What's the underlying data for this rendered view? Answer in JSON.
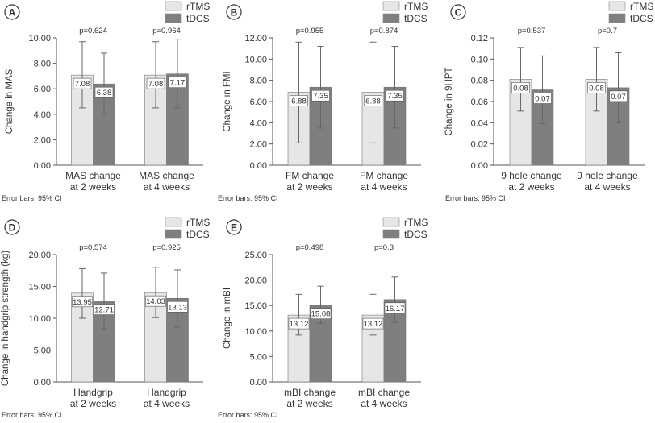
{
  "colors": {
    "rTMS": "#e6e6e6",
    "tDCS": "#7f7f7f",
    "axis": "#555555",
    "errorbar": "#666666"
  },
  "legend": [
    "rTMS",
    "tDCS"
  ],
  "error_note": "Error bars: 95% CI",
  "chart_data": [
    {
      "panel": "A",
      "type": "bar",
      "title": "",
      "xlabel": "",
      "ylabel": "Change in MAS",
      "categories": [
        "MAS change at 2 weeks",
        "MAS change at 4 weeks"
      ],
      "category_lines": [
        [
          "MAS change",
          "at 2 weeks"
        ],
        [
          "MAS change",
          "at 4 weeks"
        ]
      ],
      "yticks": [
        "0.00",
        "2.00",
        "4.00",
        "6.00",
        "8.00",
        "10.00"
      ],
      "ylim": [
        0,
        10
      ],
      "pvalues": [
        "p=0.624",
        "p=0.964"
      ],
      "series": [
        {
          "name": "rTMS",
          "values": [
            7.08,
            7.08
          ],
          "labels": [
            "7.08",
            "7.08"
          ],
          "ci_low": [
            4.5,
            4.5
          ],
          "ci_high": [
            9.7,
            9.7
          ]
        },
        {
          "name": "tDCS",
          "values": [
            6.38,
            7.17
          ],
          "labels": [
            "6.38",
            "7.17"
          ],
          "ci_low": [
            4.0,
            4.5
          ],
          "ci_high": [
            8.8,
            9.9
          ]
        }
      ],
      "legend": "top-right",
      "error_bars": "95% CI",
      "grid": false
    },
    {
      "panel": "B",
      "type": "bar",
      "title": "",
      "xlabel": "",
      "ylabel": "Change in FMI",
      "categories": [
        "FM change at 2 weeks",
        "FM change at 4 weeks"
      ],
      "category_lines": [
        [
          "FM change",
          "at 2 weeks"
        ],
        [
          "FM change",
          "at 4 weeks"
        ]
      ],
      "yticks": [
        "0.00",
        "2.00",
        "4.00",
        "6.00",
        "8.00",
        "10.00",
        "12.00"
      ],
      "ylim": [
        0,
        12
      ],
      "pvalues": [
        "p=0.955",
        "p=0.874"
      ],
      "series": [
        {
          "name": "rTMS",
          "values": [
            6.88,
            6.88
          ],
          "labels": [
            "6.88",
            "6.88"
          ],
          "ci_low": [
            2.1,
            2.1
          ],
          "ci_high": [
            11.6,
            11.6
          ]
        },
        {
          "name": "tDCS",
          "values": [
            7.35,
            7.35
          ],
          "labels": [
            "7.35",
            "7.35"
          ],
          "ci_low": [
            3.5,
            3.5
          ],
          "ci_high": [
            11.2,
            11.2
          ]
        }
      ],
      "legend": "top-right",
      "error_bars": "95% CI",
      "grid": false
    },
    {
      "panel": "C",
      "type": "bar",
      "title": "",
      "xlabel": "",
      "ylabel": "Change in 9HPT",
      "categories": [
        "9 hole change at 2 weeks",
        "9 hole change at 4 weeks"
      ],
      "category_lines": [
        [
          "9 hole change",
          "at 2 weeks"
        ],
        [
          "9 hole change",
          "at 4 weeks"
        ]
      ],
      "yticks": [
        "0.00",
        "0.02",
        "0.04",
        "0.06",
        "0.08",
        "0.10",
        "0.12"
      ],
      "ylim": [
        0,
        0.12
      ],
      "pvalues": [
        "p=0.537",
        "p=0.7"
      ],
      "series": [
        {
          "name": "rTMS",
          "values": [
            0.081,
            0.081
          ],
          "labels": [
            "0.08",
            "0.08"
          ],
          "ci_low": [
            0.051,
            0.051
          ],
          "ci_high": [
            0.111,
            0.111
          ]
        },
        {
          "name": "tDCS",
          "values": [
            0.071,
            0.073
          ],
          "labels": [
            "0.07",
            "0.07"
          ],
          "ci_low": [
            0.039,
            0.04
          ],
          "ci_high": [
            0.103,
            0.106
          ]
        }
      ],
      "legend": "top-right",
      "error_bars": "95% CI",
      "grid": false
    },
    {
      "panel": "D",
      "type": "bar",
      "title": "",
      "xlabel": "",
      "ylabel": "Change in handgrip strength (kg)",
      "categories": [
        "Handgrip at 2 weeks",
        "Handgrip at 4 weeks"
      ],
      "category_lines": [
        [
          "Handgrip",
          "at 2 weeks"
        ],
        [
          "Handgrip",
          "at 4 weeks"
        ]
      ],
      "yticks": [
        "0.00",
        "5.00",
        "10.00",
        "15.00",
        "20.00"
      ],
      "ylim": [
        0,
        20
      ],
      "pvalues": [
        "p=0.574",
        "p=0.925"
      ],
      "series": [
        {
          "name": "rTMS",
          "values": [
            13.95,
            14.03
          ],
          "labels": [
            "13.95",
            "14.03"
          ],
          "ci_low": [
            10.0,
            10.1
          ],
          "ci_high": [
            17.8,
            18.0
          ]
        },
        {
          "name": "tDCS",
          "values": [
            12.71,
            13.13
          ],
          "labels": [
            "12.71",
            "13.13"
          ],
          "ci_low": [
            8.3,
            8.6
          ],
          "ci_high": [
            17.1,
            17.6
          ]
        }
      ],
      "legend": "top-right",
      "error_bars": "95% CI",
      "grid": false
    },
    {
      "panel": "E",
      "type": "bar",
      "title": "",
      "xlabel": "",
      "ylabel": "Change in mBI",
      "categories": [
        "mBI change at 2 weeks",
        "mBI change at 4 weeks"
      ],
      "category_lines": [
        [
          "mBI change",
          "at 2 weeks"
        ],
        [
          "mBI change",
          "at 4 weeks"
        ]
      ],
      "yticks": [
        "0.00",
        "5.00",
        "10.00",
        "15.00",
        "20.00",
        "25.00"
      ],
      "ylim": [
        0,
        25
      ],
      "pvalues": [
        "p=0.498",
        "p=0.3"
      ],
      "series": [
        {
          "name": "rTMS",
          "values": [
            13.12,
            13.12
          ],
          "labels": [
            "13.12",
            "13.12"
          ],
          "ci_low": [
            9.2,
            9.2
          ],
          "ci_high": [
            17.2,
            17.2
          ]
        },
        {
          "name": "tDCS",
          "values": [
            15.08,
            16.17
          ],
          "labels": [
            "15.08",
            "16.17"
          ],
          "ci_low": [
            11.5,
            11.7
          ],
          "ci_high": [
            18.8,
            20.6
          ]
        }
      ],
      "legend": "top-right",
      "error_bars": "95% CI",
      "grid": false
    }
  ]
}
